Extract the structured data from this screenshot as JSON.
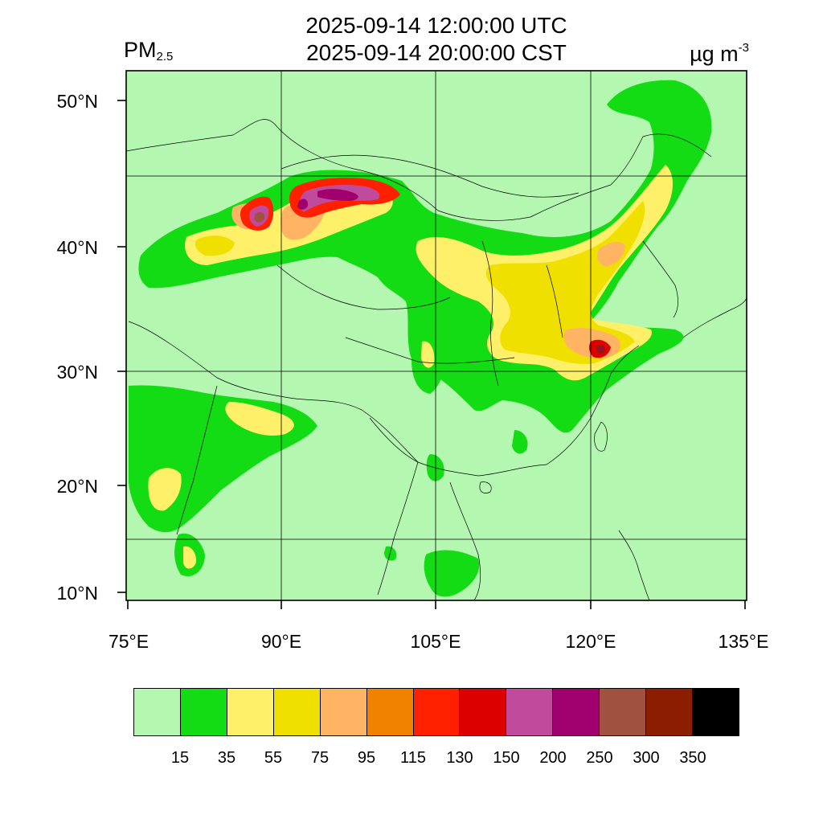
{
  "header": {
    "title_utc": "2025-09-14 12:00:00 UTC",
    "title_cst": "2025-09-14 20:00:00 CST",
    "variable_main": "PM",
    "variable_sub": "2.5",
    "unit_main": "µg m",
    "unit_sup": "-3"
  },
  "axes": {
    "lon_ticks": [
      "75°E",
      "90°E",
      "105°E",
      "120°E",
      "135°E"
    ],
    "lat_ticks": [
      "50°N",
      "40°N",
      "30°N",
      "20°N",
      "10°N"
    ]
  },
  "colors": {
    "background_field": "#b4f7b0",
    "green": "#14dc14",
    "yellow_light": "#fff06a",
    "yellow": "#f0e000",
    "orange_light": "#ffb464",
    "orange": "#f08200",
    "red": "#ff2000",
    "red_dark": "#dc0000",
    "pink": "#c04a9c",
    "purple": "#a0006e",
    "brown": "#a0523e",
    "brown_dark": "#8c1e00",
    "black": "#000000"
  },
  "legend": {
    "colors": [
      "#b4f7b0",
      "#14dc14",
      "#fff06a",
      "#f0e000",
      "#ffb464",
      "#f08200",
      "#ff2000",
      "#dc0000",
      "#c04a9c",
      "#a0006e",
      "#a0523e",
      "#8c1e00",
      "#000000"
    ],
    "labels": [
      "15",
      "35",
      "55",
      "75",
      "95",
      "115",
      "130",
      "150",
      "200",
      "250",
      "300",
      "350"
    ]
  }
}
